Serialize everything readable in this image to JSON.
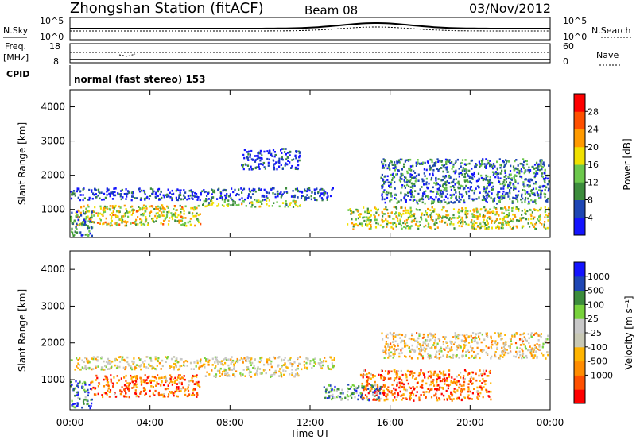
{
  "header": {
    "station": "Zhongshan Station (fitACF)",
    "beam": "Beam 08",
    "date": "03/Nov/2012"
  },
  "sky_panel": {
    "label": "N.Sky",
    "left_ticks": [
      "10^5",
      "10^0"
    ],
    "right_ticks": [
      "10^5",
      "10^0"
    ],
    "right_label": "N.Search"
  },
  "freq_panel": {
    "label_line1": "Freq.",
    "label_line2": "[MHz]",
    "left_ticks": [
      "18",
      "8"
    ],
    "right_ticks": [
      "60",
      "0"
    ],
    "right_label": "Nave"
  },
  "cpid_panel": {
    "label": "CPID",
    "text": "normal (fast stereo) 153"
  },
  "colors": {
    "power_scale": [
      "#1414ff",
      "#1e46b4",
      "#3c8c3c",
      "#6cc84c",
      "#f0e000",
      "#ff9a00",
      "#ff5000",
      "#ff0000"
    ],
    "velocity_scale": [
      "#ff0000",
      "#ff5000",
      "#ff8c00",
      "#ffb400",
      "#c8c8b4",
      "#c8c8c8",
      "#78d23c",
      "#3c8c3c",
      "#1e46b4",
      "#1414ff"
    ]
  },
  "chart_data": [
    {
      "type": "heatmap",
      "name": "power",
      "ylabel": "Slant Range [km]",
      "yticks": [
        "1000",
        "2000",
        "3000",
        "4000"
      ],
      "yrange": [
        180,
        4500
      ],
      "xticks": [
        "00:00",
        "04:00",
        "08:00",
        "12:00",
        "16:00",
        "20:00",
        "00:00"
      ],
      "xrange": [
        0,
        24
      ],
      "colorbar": {
        "label": "Power [dB]",
        "ticks": [
          "4",
          "8",
          "12",
          "16",
          "20",
          "24",
          "28"
        ]
      },
      "scatter_bands": [
        {
          "t0": 0.0,
          "t1": 13.2,
          "r0": 1300,
          "r1": 1650,
          "level": 0.15
        },
        {
          "t0": 0.3,
          "t1": 6.5,
          "r0": 550,
          "r1": 1150,
          "level": 0.55
        },
        {
          "t0": 6.5,
          "t1": 11.5,
          "r0": 1100,
          "r1": 1300,
          "level": 0.45
        },
        {
          "t0": 13.8,
          "t1": 23.9,
          "r0": 450,
          "r1": 1100,
          "level": 0.5
        },
        {
          "t0": 15.5,
          "t1": 23.9,
          "r0": 1200,
          "r1": 2500,
          "level": 0.25
        },
        {
          "t0": 8.5,
          "t1": 11.5,
          "r0": 2200,
          "r1": 2800,
          "level": 0.15
        },
        {
          "t0": 0,
          "t1": 1.1,
          "r0": 250,
          "r1": 1000,
          "level": 0.3
        }
      ]
    },
    {
      "type": "heatmap",
      "name": "velocity",
      "ylabel": "Slant Range [km]",
      "yticks": [
        "1000",
        "2000",
        "3000",
        "4000"
      ],
      "yrange": [
        180,
        4500
      ],
      "xticks": [
        "00:00",
        "04:00",
        "08:00",
        "12:00",
        "16:00",
        "20:00",
        "00:00"
      ],
      "xrange": [
        0,
        24
      ],
      "xlabel": "Time UT",
      "colorbar": {
        "label": "Velocity [m s^-1]",
        "ticks": [
          "1000",
          "500",
          "100",
          "25",
          "-25",
          "-100",
          "-500",
          "-1000"
        ]
      },
      "scatter_bands": [
        {
          "t0": 0.0,
          "t1": 13.2,
          "r0": 1300,
          "r1": 1650,
          "level": 0.45
        },
        {
          "t0": 1.0,
          "t1": 6.5,
          "r0": 550,
          "r1": 1150,
          "level": 0.2
        },
        {
          "t0": 6.5,
          "t1": 11.5,
          "r0": 1100,
          "r1": 1300,
          "level": 0.45
        },
        {
          "t0": 14.5,
          "t1": 21.0,
          "r0": 450,
          "r1": 1300,
          "level": 0.2
        },
        {
          "t0": 15.5,
          "t1": 23.9,
          "r0": 1600,
          "r1": 2300,
          "level": 0.4
        },
        {
          "t0": 12.5,
          "t1": 15.5,
          "r0": 450,
          "r1": 900,
          "level": 0.75
        },
        {
          "t0": 0,
          "t1": 1.1,
          "r0": 250,
          "r1": 1000,
          "level": 0.8
        }
      ]
    }
  ]
}
